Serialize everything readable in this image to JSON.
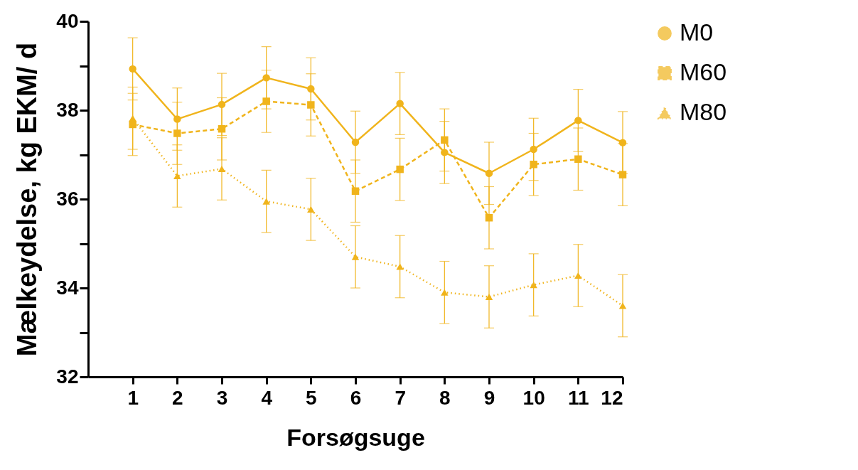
{
  "chart_data": {
    "type": "line",
    "xlabel": "Forsøgsuge",
    "ylabel": "Mælkeydelse, kg EKM/ d",
    "x": [
      1,
      2,
      3,
      4,
      5,
      6,
      7,
      8,
      9,
      10,
      11,
      12
    ],
    "xlim": [
      0,
      12
    ],
    "xticks": [
      1,
      2,
      3,
      4,
      5,
      6,
      7,
      8,
      9,
      10,
      11,
      12
    ],
    "ylim": [
      32,
      40
    ],
    "yticks": [
      32,
      {
        "value": 33,
        "label": null
      },
      34,
      {
        "value": 35,
        "label": null
      },
      36,
      {
        "value": 37,
        "label": null
      },
      38,
      {
        "value": 39,
        "label": null
      },
      40
    ],
    "grid": false,
    "legend": "top right",
    "series": [
      {
        "name": "M0",
        "color": "#f0b41c",
        "marker": "circle",
        "line_style": "solid",
        "values": [
          38.93,
          37.8,
          38.13,
          38.73,
          38.48,
          37.28,
          38.15,
          37.05,
          36.58,
          37.12,
          37.77,
          37.27
        ],
        "errors": [
          0.7,
          0.7,
          0.7,
          0.7,
          0.7,
          0.7,
          0.7,
          0.7,
          0.7,
          0.7,
          0.7,
          0.7
        ]
      },
      {
        "name": "M60",
        "color": "#f0b41c",
        "marker": "square",
        "line_style": "dashed",
        "values": [
          37.68,
          37.48,
          37.58,
          38.2,
          38.12,
          36.18,
          36.67,
          37.33,
          35.58,
          36.78,
          36.9,
          36.55
        ],
        "errors": [
          0.7,
          0.7,
          0.7,
          0.7,
          0.7,
          0.7,
          0.7,
          0.7,
          0.7,
          0.7,
          0.7,
          0.7
        ]
      },
      {
        "name": "M80",
        "color": "#f0b41c",
        "marker": "triangle",
        "line_style": "dotted",
        "values": [
          37.82,
          36.52,
          36.68,
          35.95,
          35.77,
          34.7,
          34.48,
          33.9,
          33.8,
          34.07,
          34.28,
          33.6
        ],
        "errors": [
          0.7,
          0.7,
          0.7,
          0.7,
          0.7,
          0.7,
          0.7,
          0.7,
          0.7,
          0.7,
          0.7,
          0.7
        ]
      }
    ]
  }
}
